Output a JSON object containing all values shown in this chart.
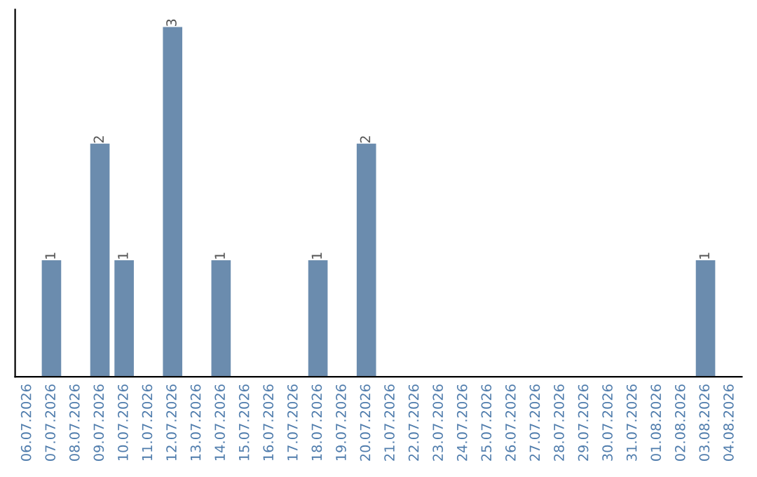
{
  "chart_data": {
    "type": "bar",
    "categories": [
      "06.07.2026",
      "07.07.2026",
      "08.07.2026",
      "09.07.2026",
      "10.07.2026",
      "11.07.2026",
      "12.07.2026",
      "13.07.2026",
      "14.07.2026",
      "15.07.2026",
      "16.07.2026",
      "17.07.2026",
      "18.07.2026",
      "19.07.2026",
      "20.07.2026",
      "21.07.2026",
      "22.07.2026",
      "23.07.2026",
      "24.07.2026",
      "25.07.2026",
      "26.07.2026",
      "27.07.2026",
      "28.07.2026",
      "29.07.2026",
      "30.07.2026",
      "31.07.2026",
      "01.08.2026",
      "02.08.2026",
      "03.08.2026",
      "04.08.2026"
    ],
    "values": [
      0,
      1,
      0,
      2,
      1,
      0,
      3,
      0,
      1,
      0,
      0,
      0,
      1,
      0,
      2,
      0,
      0,
      0,
      0,
      0,
      0,
      0,
      0,
      0,
      0,
      0,
      0,
      0,
      1,
      0
    ],
    "color": "#6b8cae",
    "value_labels": [
      null,
      "1",
      null,
      "2",
      "1",
      null,
      "3",
      null,
      "1",
      null,
      null,
      null,
      "1",
      null,
      "2",
      null,
      null,
      null,
      null,
      null,
      null,
      null,
      null,
      null,
      null,
      null,
      null,
      null,
      "1",
      null
    ],
    "tick_labels": "x",
    "grid": false
  }
}
